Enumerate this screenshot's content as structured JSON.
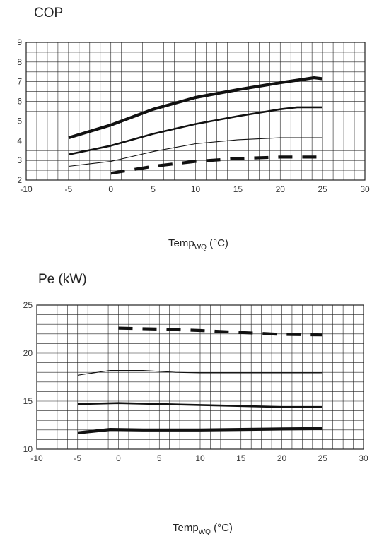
{
  "chart_data": [
    {
      "type": "line",
      "title": "COP",
      "xlabel_main": "Temp",
      "xlabel_sub": "WQ",
      "xlabel_unit": " (°C)",
      "ylabel": "",
      "xlim": [
        -10,
        30
      ],
      "ylim": [
        2,
        9
      ],
      "x_ticks": [
        -10,
        -5,
        0,
        5,
        10,
        15,
        20,
        25,
        30
      ],
      "y_ticks": [
        2,
        3,
        4,
        5,
        6,
        7,
        8,
        9
      ],
      "grid": true,
      "series": [
        {
          "style": "heavy",
          "x": [
            -5,
            0,
            5,
            10,
            15,
            20,
            24,
            25
          ],
          "y": [
            4.15,
            4.8,
            5.6,
            6.2,
            6.6,
            6.95,
            7.2,
            7.15
          ]
        },
        {
          "style": "thick",
          "x": [
            -5,
            0,
            5,
            10,
            15,
            20,
            22,
            25
          ],
          "y": [
            3.3,
            3.75,
            4.35,
            4.85,
            5.25,
            5.6,
            5.7,
            5.7
          ]
        },
        {
          "style": "thin",
          "x": [
            -5,
            0,
            5,
            10,
            15,
            20,
            21,
            25
          ],
          "y": [
            2.7,
            2.95,
            3.45,
            3.85,
            4.05,
            4.15,
            4.15,
            4.15
          ]
        },
        {
          "style": "dashed",
          "x": [
            0,
            5,
            10,
            15,
            20,
            25
          ],
          "y": [
            2.35,
            2.7,
            2.95,
            3.1,
            3.17,
            3.17
          ]
        }
      ]
    },
    {
      "type": "line",
      "title": "Pe (kW)",
      "xlabel_main": "Temp",
      "xlabel_sub": "WQ",
      "xlabel_unit": " (°C)",
      "ylabel": "",
      "xlim": [
        -10,
        30
      ],
      "ylim": [
        10,
        25
      ],
      "x_ticks": [
        -10,
        -5,
        0,
        5,
        10,
        15,
        20,
        25,
        30
      ],
      "y_ticks": [
        10,
        15,
        20,
        25
      ],
      "grid": true,
      "series": [
        {
          "style": "dashed",
          "x": [
            0,
            5,
            10,
            15,
            20,
            25
          ],
          "y": [
            22.6,
            22.5,
            22.35,
            22.15,
            21.95,
            21.9
          ]
        },
        {
          "style": "thin",
          "x": [
            -5,
            -1,
            3,
            7,
            10,
            20,
            25
          ],
          "y": [
            17.7,
            18.2,
            18.2,
            18.0,
            17.95,
            17.95,
            17.95
          ]
        },
        {
          "style": "thick",
          "x": [
            -5,
            0,
            5,
            10,
            15,
            20,
            25
          ],
          "y": [
            14.7,
            14.8,
            14.7,
            14.6,
            14.5,
            14.4,
            14.4
          ]
        },
        {
          "style": "heavy",
          "x": [
            -5,
            -1,
            3,
            7,
            10,
            15,
            20,
            25
          ],
          "y": [
            11.7,
            12.05,
            12.0,
            12.0,
            12.0,
            12.05,
            12.1,
            12.15
          ]
        }
      ]
    }
  ]
}
